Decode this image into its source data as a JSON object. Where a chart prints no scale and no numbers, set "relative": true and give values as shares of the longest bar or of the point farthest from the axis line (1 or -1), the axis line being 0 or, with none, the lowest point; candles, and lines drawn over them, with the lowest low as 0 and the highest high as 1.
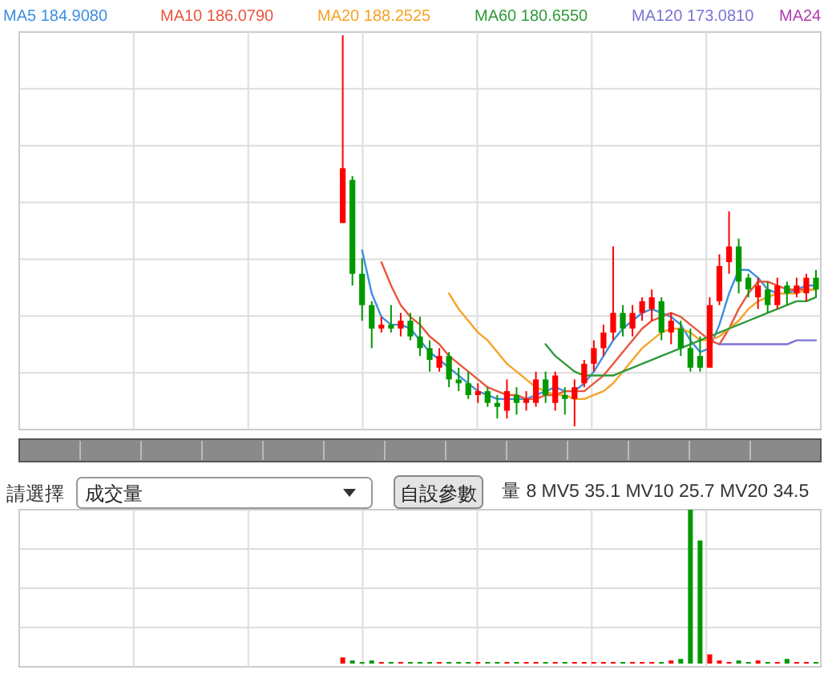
{
  "chart_data": [
    {
      "type": "candlestick",
      "relative": true,
      "grid": true,
      "legend": "top",
      "categories": [
        null,
        null,
        null,
        null,
        null,
        null,
        null,
        null,
        null,
        null,
        null,
        null,
        null,
        null,
        null,
        null,
        null,
        null,
        null,
        null,
        null,
        null,
        null,
        null,
        null,
        null,
        null,
        null,
        null,
        null,
        null,
        null,
        null,
        null,
        null,
        null,
        null,
        null,
        null,
        null,
        null,
        null,
        null,
        null,
        null,
        null,
        null,
        null,
        null,
        null,
        null,
        null,
        null,
        null,
        null,
        null,
        null,
        null,
        null,
        null,
        null,
        null,
        null,
        null,
        null,
        null,
        null,
        null,
        null,
        null,
        null,
        null,
        null,
        null,
        null,
        null,
        null,
        null,
        null,
        null,
        null,
        null,
        null
      ],
      "ohlc": [
        null,
        null,
        null,
        null,
        null,
        null,
        null,
        null,
        null,
        null,
        null,
        null,
        null,
        null,
        null,
        null,
        null,
        null,
        null,
        null,
        null,
        null,
        null,
        null,
        null,
        null,
        null,
        null,
        null,
        null,
        null,
        null,
        null,
        [
          0.52,
          1.0,
          0.52,
          0.66
        ],
        [
          0.63,
          0.64,
          0.36,
          0.39
        ],
        [
          0.39,
          0.43,
          0.27,
          0.31
        ],
        [
          0.31,
          0.32,
          0.2,
          0.25
        ],
        [
          0.25,
          0.28,
          0.24,
          0.26
        ],
        [
          0.26,
          0.31,
          0.24,
          0.25
        ],
        [
          0.25,
          0.29,
          0.23,
          0.27
        ],
        [
          0.27,
          0.29,
          0.22,
          0.23
        ],
        [
          0.23,
          0.28,
          0.18,
          0.2
        ],
        [
          0.2,
          0.22,
          0.14,
          0.17
        ],
        [
          0.15,
          0.2,
          0.14,
          0.18
        ],
        [
          0.18,
          0.19,
          0.1,
          0.12
        ],
        [
          0.12,
          0.15,
          0.09,
          0.11
        ],
        [
          0.11,
          0.14,
          0.07,
          0.08
        ],
        [
          0.08,
          0.11,
          0.06,
          0.09
        ],
        [
          0.09,
          0.1,
          0.05,
          0.06
        ],
        [
          0.06,
          0.08,
          0.02,
          0.05
        ],
        [
          0.04,
          0.12,
          0.02,
          0.09
        ],
        [
          0.08,
          0.1,
          0.03,
          0.06
        ],
        [
          0.06,
          0.09,
          0.04,
          0.07
        ],
        [
          0.06,
          0.14,
          0.05,
          0.12
        ],
        [
          0.12,
          0.14,
          0.06,
          0.08
        ],
        [
          0.06,
          0.14,
          0.04,
          0.13
        ],
        [
          0.08,
          0.1,
          0.03,
          0.07
        ],
        [
          0.07,
          0.12,
          0.0,
          0.1
        ],
        [
          0.11,
          0.17,
          0.1,
          0.16
        ],
        [
          0.16,
          0.22,
          0.14,
          0.2
        ],
        [
          0.2,
          0.26,
          0.18,
          0.24
        ],
        [
          0.24,
          0.46,
          0.22,
          0.29
        ],
        [
          0.29,
          0.31,
          0.23,
          0.25
        ],
        [
          0.25,
          0.31,
          0.23,
          0.29
        ],
        [
          0.29,
          0.33,
          0.27,
          0.32
        ],
        [
          0.3,
          0.35,
          0.27,
          0.33
        ],
        [
          0.32,
          0.33,
          0.22,
          0.24
        ],
        [
          0.24,
          0.29,
          0.21,
          0.27
        ],
        [
          0.25,
          0.27,
          0.18,
          0.2
        ],
        [
          0.2,
          0.25,
          0.14,
          0.15
        ],
        [
          0.18,
          0.23,
          0.14,
          0.15
        ],
        [
          0.15,
          0.33,
          0.15,
          0.31
        ],
        [
          0.32,
          0.44,
          0.31,
          0.41
        ],
        [
          0.42,
          0.55,
          0.39,
          0.46
        ],
        [
          0.46,
          0.48,
          0.34,
          0.37
        ],
        [
          0.38,
          0.39,
          0.33,
          0.35
        ],
        [
          0.33,
          0.38,
          0.3,
          0.36
        ],
        [
          0.35,
          0.37,
          0.29,
          0.31
        ],
        [
          0.31,
          0.38,
          0.3,
          0.36
        ],
        [
          0.36,
          0.37,
          0.31,
          0.34
        ],
        [
          0.34,
          0.38,
          0.33,
          0.36
        ],
        [
          0.34,
          0.39,
          0.32,
          0.38
        ],
        [
          0.38,
          0.4,
          0.33,
          0.35
        ]
      ],
      "series": [
        {
          "name": "MA5 184.9080",
          "type": "line",
          "color": "#3d8fe0",
          "values": [
            null,
            null,
            null,
            null,
            null,
            null,
            null,
            null,
            null,
            null,
            null,
            null,
            null,
            null,
            null,
            null,
            null,
            null,
            null,
            null,
            null,
            null,
            null,
            null,
            null,
            null,
            null,
            null,
            null,
            null,
            null,
            null,
            null,
            null,
            null,
            0.45,
            0.34,
            0.28,
            0.26,
            0.26,
            0.25,
            0.22,
            0.19,
            0.17,
            0.15,
            0.13,
            0.11,
            0.09,
            0.08,
            0.07,
            0.07,
            0.07,
            0.07,
            0.08,
            0.09,
            0.1,
            0.09,
            0.09,
            0.11,
            0.14,
            0.18,
            0.22,
            0.25,
            0.27,
            0.29,
            0.3,
            0.29,
            0.28,
            0.26,
            0.22,
            0.19,
            0.2,
            0.26,
            0.34,
            0.4,
            0.4,
            0.38,
            0.35,
            0.34,
            0.34,
            0.35,
            0.36,
            0.36
          ]
        },
        {
          "name": "MA10 186.0790",
          "type": "line",
          "color": "#e8563c",
          "values": [
            null,
            null,
            null,
            null,
            null,
            null,
            null,
            null,
            null,
            null,
            null,
            null,
            null,
            null,
            null,
            null,
            null,
            null,
            null,
            null,
            null,
            null,
            null,
            null,
            null,
            null,
            null,
            null,
            null,
            null,
            null,
            null,
            null,
            null,
            null,
            null,
            null,
            0.42,
            0.36,
            0.31,
            0.28,
            0.26,
            0.23,
            0.21,
            0.18,
            0.16,
            0.14,
            0.12,
            0.1,
            0.09,
            0.08,
            0.08,
            0.07,
            0.07,
            0.08,
            0.08,
            0.09,
            0.09,
            0.09,
            0.11,
            0.13,
            0.16,
            0.19,
            0.22,
            0.25,
            0.27,
            0.28,
            0.29,
            0.28,
            0.26,
            0.24,
            0.22,
            0.21,
            0.25,
            0.3,
            0.34,
            0.37,
            0.37,
            0.36,
            0.35,
            0.35,
            0.35,
            0.35
          ]
        },
        {
          "name": "MA20 188.2525",
          "type": "line",
          "color": "#f7a325",
          "values": [
            null,
            null,
            null,
            null,
            null,
            null,
            null,
            null,
            null,
            null,
            null,
            null,
            null,
            null,
            null,
            null,
            null,
            null,
            null,
            null,
            null,
            null,
            null,
            null,
            null,
            null,
            null,
            null,
            null,
            null,
            null,
            null,
            null,
            null,
            null,
            null,
            null,
            null,
            null,
            null,
            null,
            null,
            null,
            null,
            0.34,
            0.3,
            0.27,
            0.24,
            0.22,
            0.19,
            0.16,
            0.14,
            0.12,
            0.1,
            0.09,
            0.08,
            0.08,
            0.07,
            0.07,
            0.08,
            0.09,
            0.11,
            0.14,
            0.17,
            0.2,
            0.22,
            0.24,
            0.25,
            0.25,
            0.24,
            0.22,
            0.22,
            0.23,
            0.25,
            0.27,
            0.3,
            0.32,
            0.33,
            0.34,
            0.34,
            0.34,
            0.35,
            0.35
          ]
        },
        {
          "name": "MA60 180.6550",
          "type": "line",
          "color": "#2e9a3a",
          "values": [
            null,
            null,
            null,
            null,
            null,
            null,
            null,
            null,
            null,
            null,
            null,
            null,
            null,
            null,
            null,
            null,
            null,
            null,
            null,
            null,
            null,
            null,
            null,
            null,
            null,
            null,
            null,
            null,
            null,
            null,
            null,
            null,
            null,
            null,
            null,
            null,
            null,
            null,
            null,
            null,
            null,
            null,
            null,
            null,
            null,
            null,
            null,
            null,
            null,
            null,
            null,
            null,
            null,
            null,
            0.21,
            0.18,
            0.16,
            0.14,
            0.13,
            0.13,
            0.13,
            0.13,
            0.14,
            0.15,
            0.16,
            0.17,
            0.18,
            0.19,
            0.2,
            0.21,
            0.22,
            0.23,
            0.24,
            0.25,
            0.26,
            0.27,
            0.28,
            0.29,
            0.3,
            0.31,
            0.32,
            0.32,
            0.33
          ]
        },
        {
          "name": "MA120 173.0810",
          "type": "line",
          "color": "#7b74d6",
          "values": [
            null,
            null,
            null,
            null,
            null,
            null,
            null,
            null,
            null,
            null,
            null,
            null,
            null,
            null,
            null,
            null,
            null,
            null,
            null,
            null,
            null,
            null,
            null,
            null,
            null,
            null,
            null,
            null,
            null,
            null,
            null,
            null,
            null,
            null,
            null,
            null,
            null,
            null,
            null,
            null,
            null,
            null,
            null,
            null,
            null,
            null,
            null,
            null,
            null,
            null,
            null,
            null,
            null,
            null,
            null,
            null,
            null,
            null,
            null,
            null,
            null,
            null,
            null,
            null,
            null,
            null,
            null,
            null,
            null,
            null,
            null,
            null,
            0.21,
            0.21,
            0.21,
            0.21,
            0.21,
            0.21,
            0.21,
            0.21,
            0.22,
            0.22,
            0.22
          ]
        }
      ],
      "annotations": [
        "MA24"
      ]
    },
    {
      "type": "bar",
      "relative": true,
      "grid": true,
      "title": "量 8  MV5 35.1  MV10 25.7  MV20 34.5",
      "annotations": [
        "請選擇",
        "成交量",
        "自設參數"
      ],
      "categories": [
        null,
        null,
        null,
        null,
        null,
        null,
        null,
        null,
        null,
        null,
        null,
        null,
        null,
        null,
        null,
        null,
        null,
        null,
        null,
        null,
        null,
        null,
        null,
        null,
        null,
        null,
        null,
        null,
        null,
        null,
        null,
        null,
        null,
        null,
        null,
        null,
        null,
        null,
        null,
        null,
        null,
        null,
        null,
        null,
        null,
        null,
        null,
        null,
        null,
        null,
        null,
        null,
        null,
        null,
        null,
        null,
        null,
        null,
        null,
        null,
        null,
        null,
        null,
        null,
        null,
        null,
        null,
        null,
        null,
        null,
        null,
        null,
        null,
        null,
        null,
        null,
        null,
        null,
        null,
        null,
        null,
        null,
        null
      ],
      "values": [
        null,
        null,
        null,
        null,
        null,
        null,
        null,
        null,
        null,
        null,
        null,
        null,
        null,
        null,
        null,
        null,
        null,
        null,
        null,
        null,
        null,
        null,
        null,
        null,
        null,
        null,
        null,
        null,
        null,
        null,
        null,
        null,
        null,
        0.04,
        0.02,
        0.01,
        0.02,
        0.01,
        0.01,
        0.01,
        0.01,
        0.01,
        0.01,
        0.01,
        0.01,
        0.01,
        0.01,
        0.01,
        0.01,
        0.01,
        0.01,
        0.01,
        0.01,
        0.01,
        0.01,
        0.01,
        0.01,
        0.01,
        0.01,
        0.01,
        0.01,
        0.01,
        0.01,
        0.01,
        0.01,
        0.01,
        0.01,
        0.02,
        0.03,
        1,
        0.8,
        0.06,
        0.02,
        0.01,
        0.02,
        0.01,
        0.02,
        0.01,
        0.01,
        0.03,
        0.01,
        0.01,
        0.01
      ],
      "colors": [
        null,
        null,
        null,
        null,
        null,
        null,
        null,
        null,
        null,
        null,
        null,
        null,
        null,
        null,
        null,
        null,
        null,
        null,
        null,
        null,
        null,
        null,
        null,
        null,
        null,
        null,
        null,
        null,
        null,
        null,
        null,
        null,
        null,
        "#ff0000",
        "#009900",
        "#009900",
        "#009900",
        "#ff0000",
        "#009900",
        "#ff0000",
        "#009900",
        "#009900",
        "#009900",
        "#ff0000",
        "#009900",
        "#009900",
        "#009900",
        "#ff0000",
        "#009900",
        "#009900",
        "#ff0000",
        "#009900",
        "#ff0000",
        "#ff0000",
        "#009900",
        "#ff0000",
        "#009900",
        "#ff0000",
        "#ff0000",
        "#ff0000",
        "#ff0000",
        "#ff0000",
        "#009900",
        "#ff0000",
        "#ff0000",
        "#ff0000",
        "#009900",
        "#ff0000",
        "#009900",
        "#009900",
        "#009900",
        "#ff0000",
        "#ff0000",
        "#ff0000",
        "#009900",
        "#009900",
        "#ff0000",
        "#009900",
        "#ff0000",
        "#009900",
        "#ff0000",
        "#ff0000",
        "#009900"
      ]
    }
  ]
}
